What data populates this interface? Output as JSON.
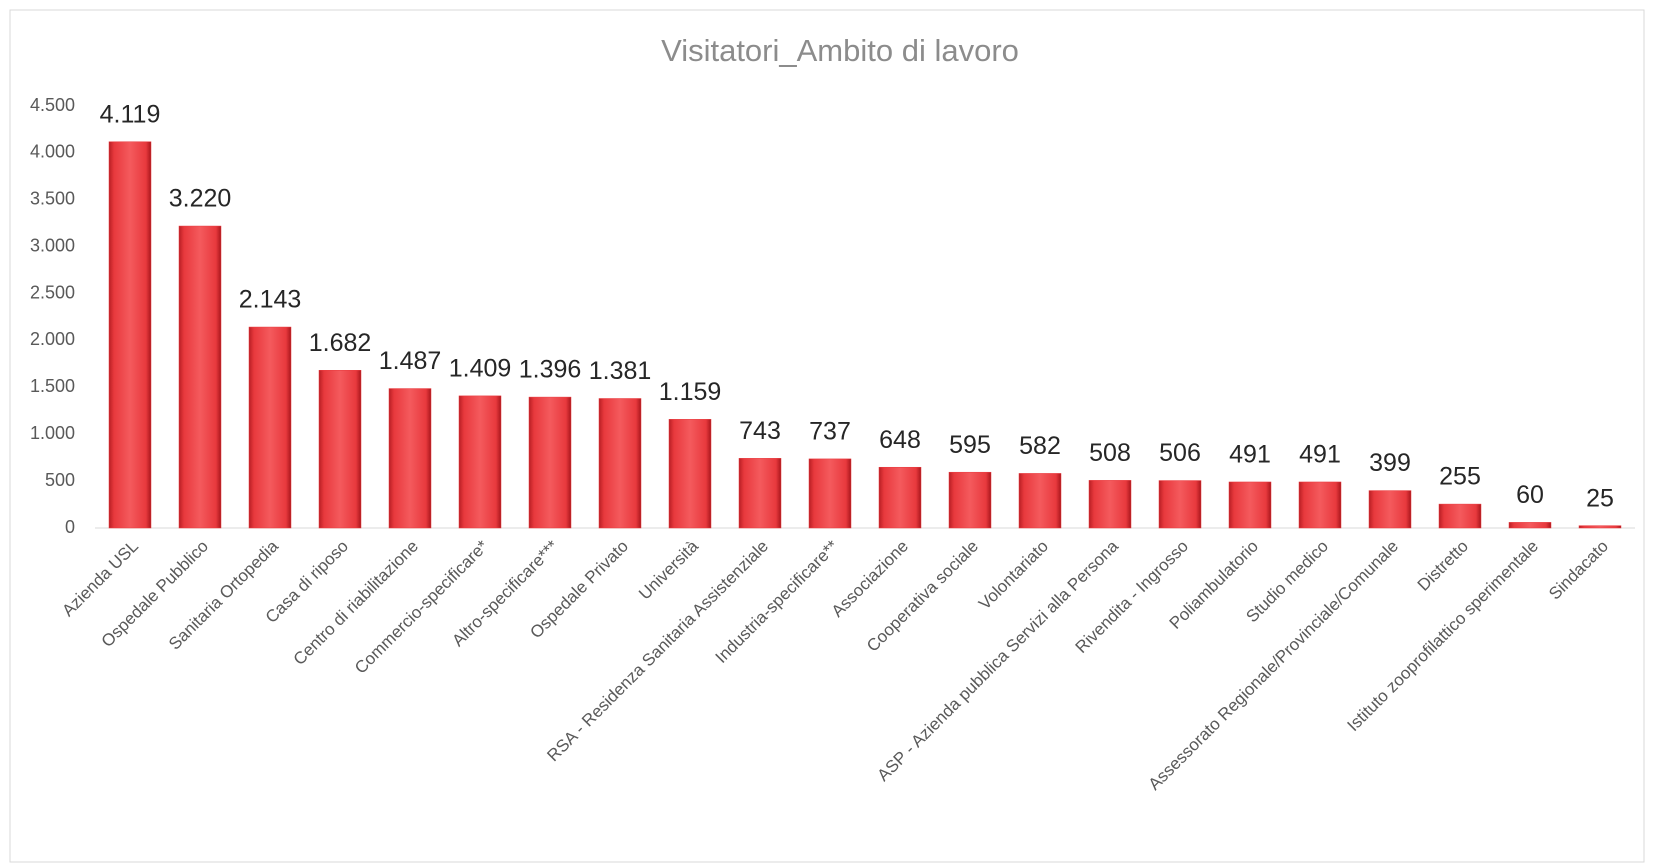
{
  "chart_data": {
    "type": "bar",
    "title": "Visitatori_Ambito di lavoro",
    "categories": [
      "Azienda USL",
      "Ospedale Pubblico",
      "Sanitaria Ortopedia",
      "Casa di riposo",
      "Centro di riabilitazione",
      "Commercio-specificare*",
      "Altro-specificare***",
      "Ospedale Privato",
      "Università",
      "RSA - Residenza Sanitaria Assistenziale",
      "Industria-specificare**",
      "Associazione",
      "Cooperativa sociale",
      "Volontariato",
      "ASP - Azienda pubblica Servizi alla Persona",
      "Rivendita - Ingrosso",
      "Poliambulatorio",
      "Studio medico",
      "Assessorato Regionale/Provinciale/Comunale",
      "Distretto",
      "Istituto zooprofilattico sperimentale",
      "Sindacato"
    ],
    "values": [
      4119,
      3220,
      2143,
      1682,
      1487,
      1409,
      1396,
      1381,
      1159,
      743,
      737,
      648,
      595,
      582,
      508,
      506,
      491,
      491,
      399,
      255,
      60,
      25
    ],
    "value_labels": [
      "4.119",
      "3.220",
      "2.143",
      "1.682",
      "1.487",
      "1.409",
      "1.396",
      "1.381",
      "1.159",
      "743",
      "737",
      "648",
      "595",
      "582",
      "508",
      "506",
      "491",
      "491",
      "399",
      "255",
      "60",
      "25"
    ],
    "color": "#e8393d",
    "ylim": [
      0,
      4500
    ],
    "yticks": [
      0,
      500,
      {
        "value": 1000,
        "label": "1.000"
      },
      {
        "value": 1500,
        "label": "1.500"
      },
      {
        "value": 2000,
        "label": "2.000"
      },
      {
        "value": 2500,
        "label": "2.500"
      },
      {
        "value": 3000,
        "label": "3.000"
      },
      {
        "value": 3500,
        "label": "3.500"
      },
      {
        "value": 4000,
        "label": "4.000"
      },
      {
        "value": 4500,
        "label": "4.500"
      }
    ],
    "grid": false
  }
}
